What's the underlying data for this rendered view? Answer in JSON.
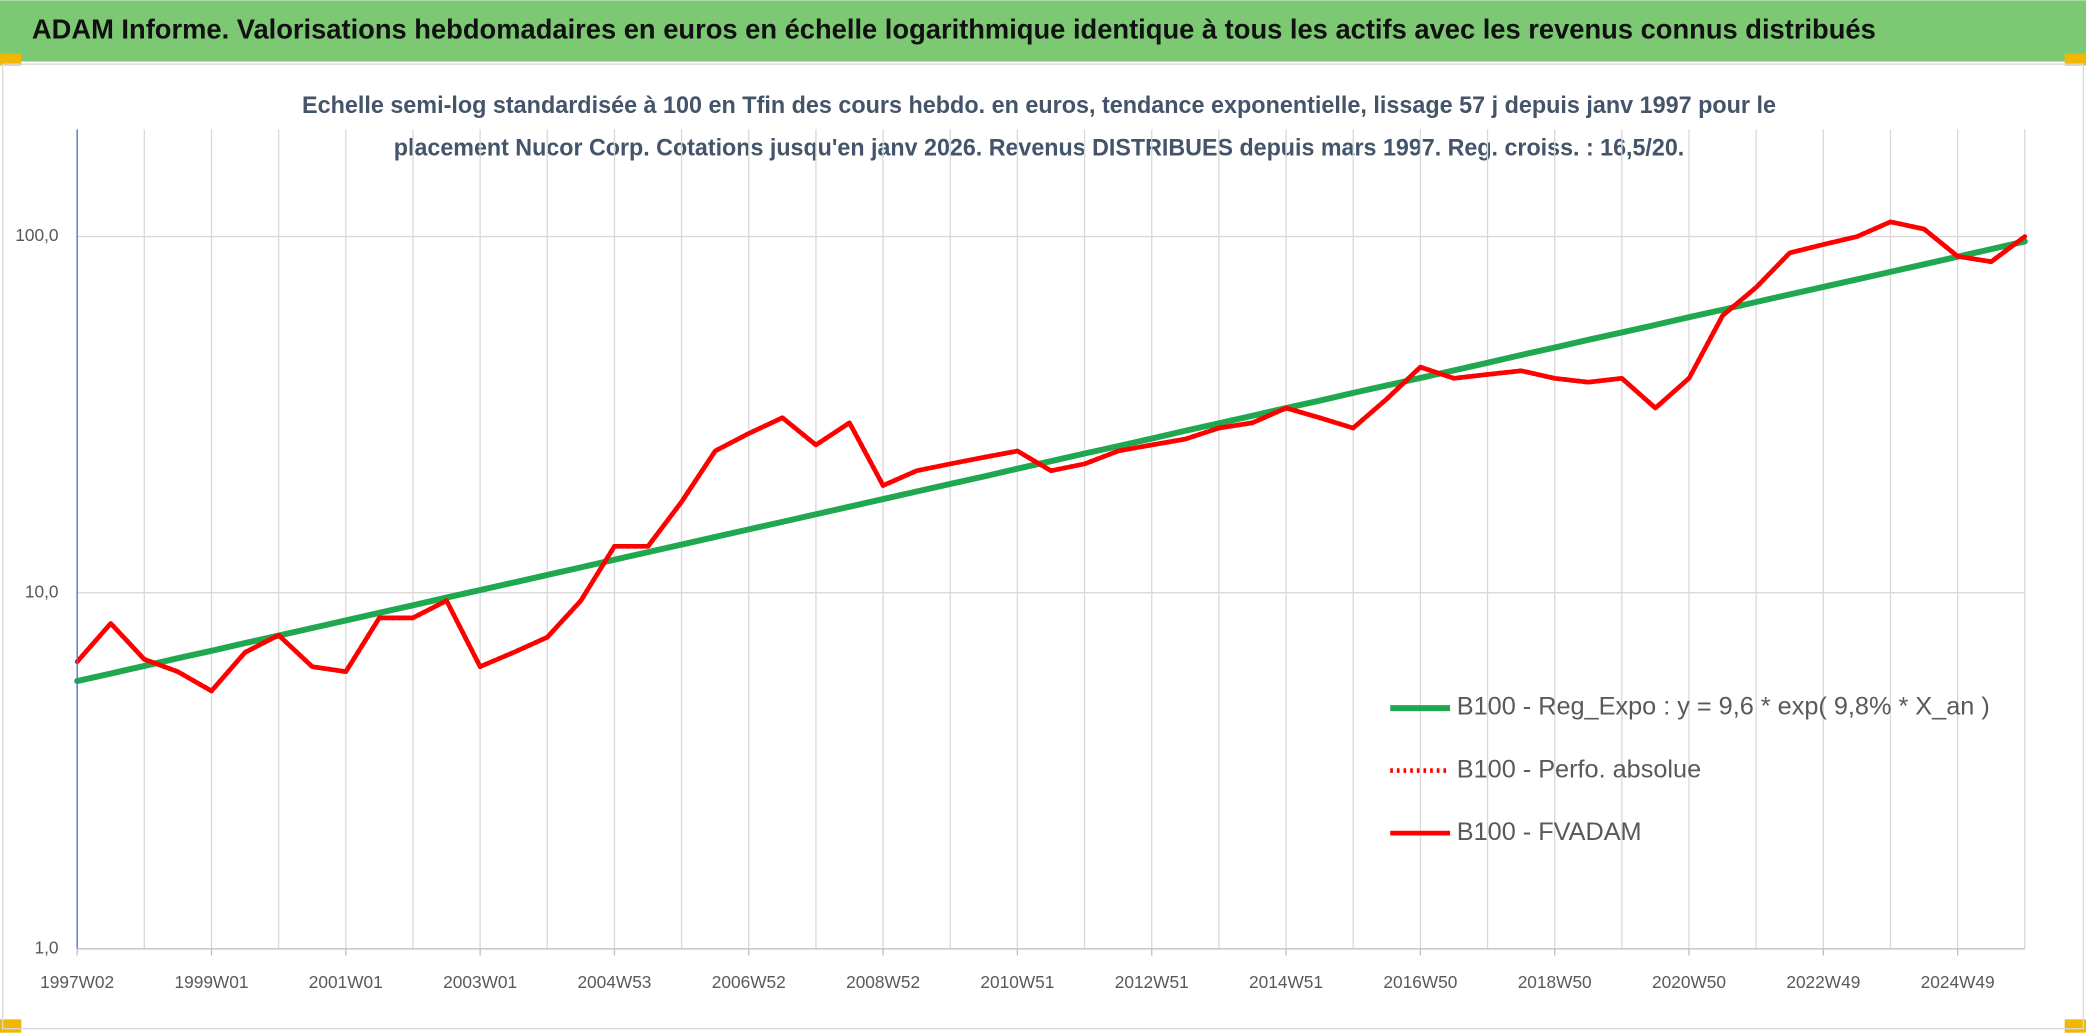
{
  "chart_data": {
    "type": "line",
    "title": "ADAM Informe. Valorisations hebdomadaires en euros en échelle logarithmique identique à tous les actifs avec les revenus connus distribués",
    "subtitle": [
      "Echelle semi-log standardisée à 100 en Tfin des cours hebdo. en euros, tendance exponentielle, lissage 57 j depuis janv 1997 pour le",
      "placement Nucor Corp. Cotations jusqu'en janv 2026. Revenus DISTRIBUES depuis mars 1997. Reg. croiss. : 16,5/20."
    ],
    "categories": [
      "1997W02",
      null,
      null,
      null,
      "1999W01",
      null,
      null,
      null,
      "2001W01",
      null,
      null,
      null,
      "2003W01",
      null,
      null,
      null,
      "2004W53",
      null,
      null,
      null,
      "2006W52",
      null,
      null,
      null,
      "2008W52",
      null,
      null,
      null,
      "2010W51",
      null,
      null,
      null,
      "2012W51",
      null,
      null,
      null,
      "2014W51",
      null,
      null,
      null,
      "2016W50",
      null,
      null,
      null,
      "2018W50",
      null,
      null,
      null,
      "2020W50",
      null,
      null,
      null,
      "2022W49",
      null,
      null,
      null,
      "2024W49",
      null,
      null
    ],
    "series": [
      {
        "name": "B100 - Reg_Expo : y = 9,6 * exp( 9,8% *  X_an )",
        "color": "#1fa84f",
        "dash": "solid",
        "values": [
          5.65,
          5.93,
          6.23,
          6.55,
          6.87,
          7.22,
          7.58,
          7.96,
          8.36,
          8.78,
          9.22,
          9.69,
          10.17,
          10.68,
          11.22,
          11.78,
          12.38,
          13.0,
          13.65,
          14.34,
          15.06,
          15.81,
          16.61,
          17.44,
          18.32,
          19.24,
          20.2,
          21.2,
          22.3,
          23.4,
          24.6,
          25.8,
          27.1,
          28.5,
          29.9,
          31.4,
          33.0,
          34.6,
          36.4,
          38.2,
          40.1,
          42.1,
          44.2,
          46.5,
          48.8,
          51.3,
          53.8,
          56.5,
          59.4,
          62.3,
          65.5,
          68.8,
          72.2,
          75.8,
          79.6,
          83.6,
          87.8,
          92.2,
          96.9
        ]
      },
      {
        "name": "B100 - Perfo. absolue",
        "color": "#ff0000",
        "dash": "dotted",
        "values": [
          6.4,
          8.2,
          6.5,
          6.0,
          5.3,
          6.8,
          7.6,
          6.2,
          6.0,
          8.5,
          8.5,
          9.5,
          6.2,
          6.8,
          7.5,
          9.5,
          13.5,
          13.5,
          18,
          25,
          28,
          31,
          26,
          30,
          20,
          22,
          23,
          24,
          25,
          22,
          23,
          25,
          26,
          27,
          29,
          30,
          33,
          31,
          29,
          35,
          43,
          40,
          41,
          42,
          40,
          39,
          40,
          33,
          40,
          60,
          72,
          90,
          95,
          100,
          110,
          105,
          88,
          85,
          100
        ]
      },
      {
        "name": "B100 - FVADAM",
        "color": "#ff0000",
        "dash": "solid",
        "values": [
          6.4,
          8.2,
          6.5,
          6.0,
          5.3,
          6.8,
          7.6,
          6.2,
          6.0,
          8.5,
          8.5,
          9.5,
          6.2,
          6.8,
          7.5,
          9.5,
          13.5,
          13.5,
          18,
          25,
          28,
          31,
          26,
          30,
          20,
          22,
          23,
          24,
          25,
          22,
          23,
          25,
          26,
          27,
          29,
          30,
          33,
          31,
          29,
          35,
          43,
          40,
          41,
          42,
          40,
          39,
          40,
          33,
          40,
          60,
          72,
          90,
          95,
          100,
          110,
          105,
          88,
          85,
          100
        ]
      }
    ],
    "log_scale": true,
    "ylim": [
      1,
      200
    ],
    "yticks": [
      {
        "value": 1,
        "label": "1,0"
      },
      {
        "value": 10,
        "label": "10,0"
      },
      {
        "value": 100,
        "label": "100,0"
      }
    ],
    "grid": true,
    "legend": "right"
  }
}
